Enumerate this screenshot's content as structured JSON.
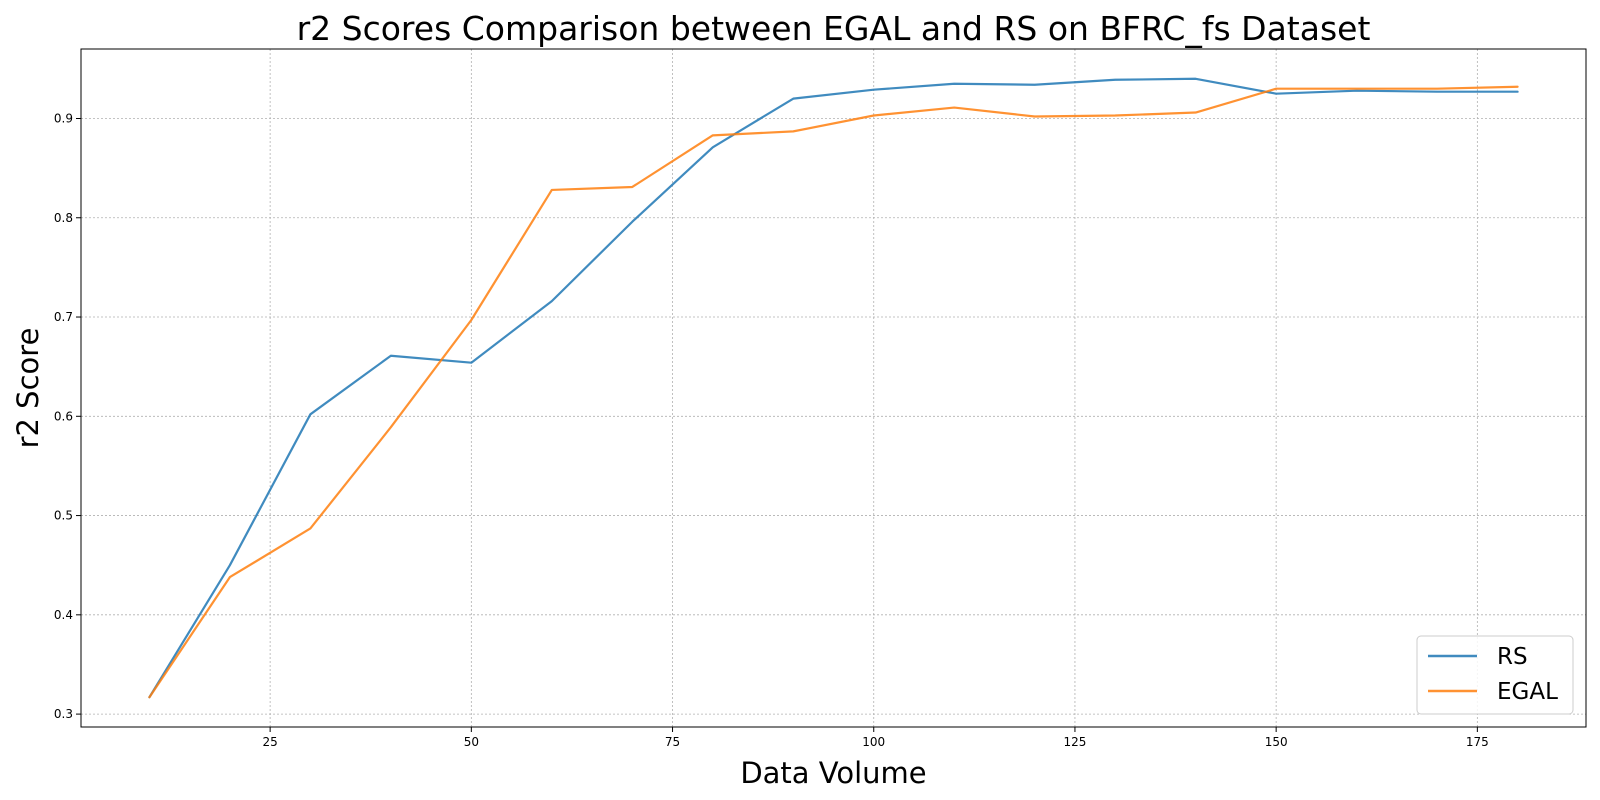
{
  "chart_data": {
    "type": "line",
    "title": "r2 Scores Comparison between EGAL and RS on BFRC_fs Dataset",
    "xlabel": "Data Volume",
    "ylabel": "r2 Score",
    "xlim": [
      1.5,
      188.5
    ],
    "ylim": [
      0.287,
      0.97
    ],
    "xticks": [
      25,
      50,
      75,
      100,
      125,
      150,
      175
    ],
    "yticks": [
      0.3,
      0.4,
      0.5,
      0.6,
      0.7,
      0.8,
      0.9
    ],
    "grid": true,
    "legend_position": "lower-right",
    "x": [
      10,
      20,
      30,
      40,
      50,
      60,
      70,
      80,
      90,
      100,
      110,
      120,
      130,
      140,
      150,
      160,
      170,
      180
    ],
    "series": [
      {
        "name": "RS",
        "color": "#1f77b4",
        "values": [
          0.317,
          0.45,
          0.602,
          0.661,
          0.654,
          0.716,
          0.796,
          0.871,
          0.92,
          0.929,
          0.935,
          0.934,
          0.939,
          0.94,
          0.925,
          0.928,
          0.927,
          0.927
        ]
      },
      {
        "name": "EGAL",
        "color": "#ff7f0e",
        "values": [
          0.317,
          0.438,
          0.487,
          0.589,
          0.697,
          0.828,
          0.831,
          0.883,
          0.887,
          0.903,
          0.911,
          0.902,
          0.903,
          0.906,
          0.93,
          0.93,
          0.93,
          0.932
        ]
      }
    ]
  }
}
